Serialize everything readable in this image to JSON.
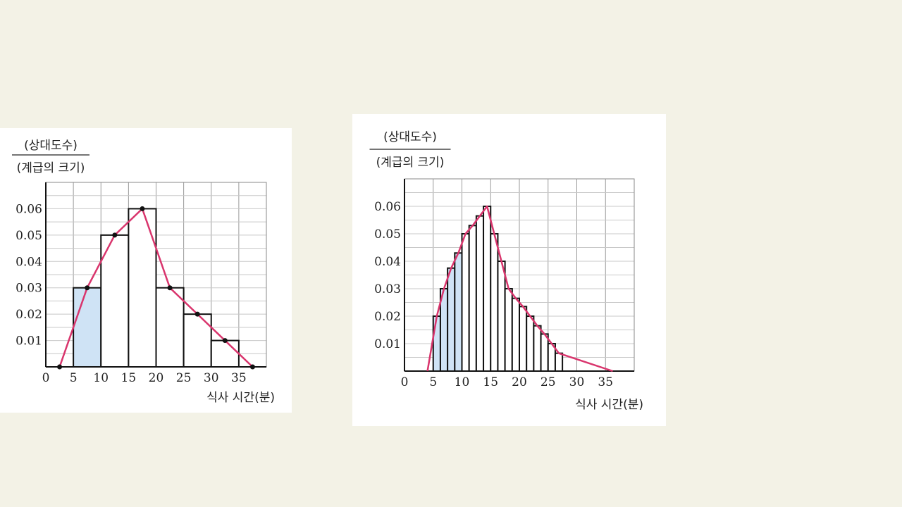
{
  "chart_data": [
    {
      "type": "bar",
      "ylabel_numerator": "(상대도수)",
      "ylabel_denominator": "(계급의 크기)",
      "xlabel": "식사 시간(분)",
      "xlim": [
        0,
        40
      ],
      "ylim": [
        0,
        0.07
      ],
      "x_ticks": [
        0,
        5,
        10,
        15,
        20,
        25,
        30,
        35
      ],
      "x_tick_labels": [
        "0",
        "5",
        "10",
        "15",
        "20",
        "25",
        "30",
        "35"
      ],
      "y_ticks": [
        0.01,
        0.02,
        0.03,
        0.04,
        0.05,
        0.06
      ],
      "y_tick_labels": [
        "0.01",
        "0.02",
        "0.03",
        "0.04",
        "0.05",
        "0.06"
      ],
      "grid": true,
      "bin_width": 5,
      "bins": [
        [
          5,
          10
        ],
        [
          10,
          15
        ],
        [
          15,
          20
        ],
        [
          20,
          25
        ],
        [
          25,
          30
        ],
        [
          30,
          35
        ]
      ],
      "values": [
        0.03,
        0.05,
        0.06,
        0.03,
        0.02,
        0.01
      ],
      "highlighted_bins": [
        0
      ],
      "polygon": {
        "x": [
          2.5,
          7.5,
          12.5,
          17.5,
          22.5,
          27.5,
          32.5,
          37.5
        ],
        "y": [
          0,
          0.03,
          0.05,
          0.06,
          0.03,
          0.02,
          0.01,
          0
        ],
        "markers": true
      },
      "colors": {
        "line": "#d9356d",
        "highlight": "#cfe3f5",
        "bar_edge": "#111111",
        "grid": "#c8c8c8"
      }
    },
    {
      "type": "bar",
      "ylabel_numerator": "(상대도수)",
      "ylabel_denominator": "(계급의 크기)",
      "xlabel": "식사 시간(분)",
      "xlim": [
        0,
        40
      ],
      "ylim": [
        0,
        0.07
      ],
      "x_ticks": [
        0,
        5,
        10,
        15,
        20,
        25,
        30,
        35
      ],
      "x_tick_labels": [
        "0",
        "5",
        "10",
        "15",
        "20",
        "25",
        "30",
        "35"
      ],
      "y_ticks": [
        0.01,
        0.02,
        0.03,
        0.04,
        0.05,
        0.06
      ],
      "y_tick_labels": [
        "0.01",
        "0.02",
        "0.03",
        "0.04",
        "0.05",
        "0.06"
      ],
      "grid": true,
      "bin_width": 1.25,
      "bins_start": 5,
      "values": [
        0.02,
        0.03,
        0.0375,
        0.043,
        0.05,
        0.053,
        0.0565,
        0.06,
        0.05,
        0.04,
        0.03,
        0.0265,
        0.0235,
        0.02,
        0.0165,
        0.0135,
        0.01,
        0.0065
      ],
      "highlighted_bins": [
        0,
        1,
        2,
        3
      ],
      "polygon": {
        "x": [
          4,
          5.625,
          6.875,
          8.125,
          9.375,
          10.625,
          11.875,
          13.125,
          14.375,
          15.625,
          16.875,
          17.5,
          18.125,
          19.375,
          20.625,
          21.875,
          23.125,
          24.375,
          25.625,
          26.875,
          28.125,
          29.375,
          30.625,
          31.875,
          33.125,
          34.375,
          35.625,
          36.25
        ],
        "y": [
          0,
          0.02,
          0.03,
          0.0375,
          0.043,
          0.05,
          0.053,
          0.0565,
          0.06,
          0.05,
          0.04,
          0.03,
          0.0265,
          0.0235,
          0.02,
          0.0165,
          0.0135,
          0.01,
          0.0065,
          0,
          0,
          0,
          0,
          0,
          0,
          0,
          0,
          0
        ],
        "markers": false
      },
      "colors": {
        "line": "#d9356d",
        "highlight": "#cfe3f5",
        "bar_edge": "#111111",
        "grid": "#c8c8c8"
      }
    }
  ]
}
